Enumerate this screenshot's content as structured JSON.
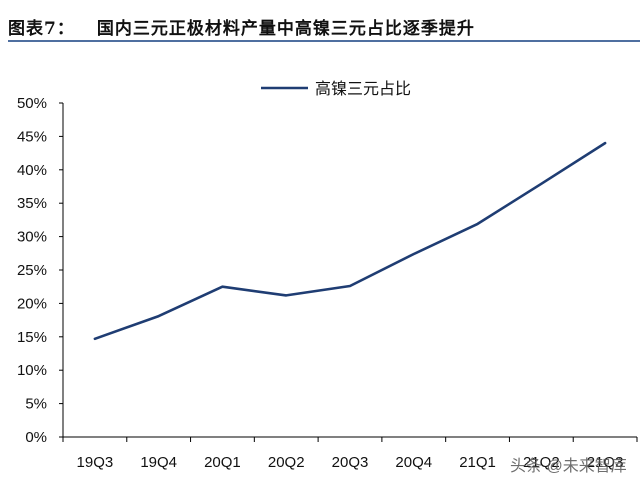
{
  "figure": {
    "label": "图表7：",
    "title": "国内三元正极材料产量中高镍三元占比逐季提升"
  },
  "watermark": "头条 @未来智库",
  "colors": {
    "line": "#1f3d73",
    "title_rule": "#4f6fa0",
    "axis": "#000000"
  },
  "chart_data": {
    "type": "line",
    "title": "国内三元正极材料产量中高镍三元占比逐季提升",
    "xlabel": "",
    "ylabel": "",
    "categories": [
      "19Q3",
      "19Q4",
      "20Q1",
      "20Q2",
      "20Q3",
      "20Q4",
      "21Q1",
      "21Q2",
      "21Q3"
    ],
    "series": [
      {
        "name": "高镍三元占比",
        "values": [
          14.7,
          18.1,
          22.5,
          21.2,
          22.6,
          27.4,
          31.9,
          37.9,
          44.0
        ]
      }
    ],
    "ylim": [
      0,
      50
    ],
    "yticks": [
      "0%",
      "5%",
      "10%",
      "15%",
      "20%",
      "25%",
      "30%",
      "35%",
      "40%",
      "45%",
      "50%"
    ],
    "grid": false,
    "legend_position": "top-center"
  }
}
